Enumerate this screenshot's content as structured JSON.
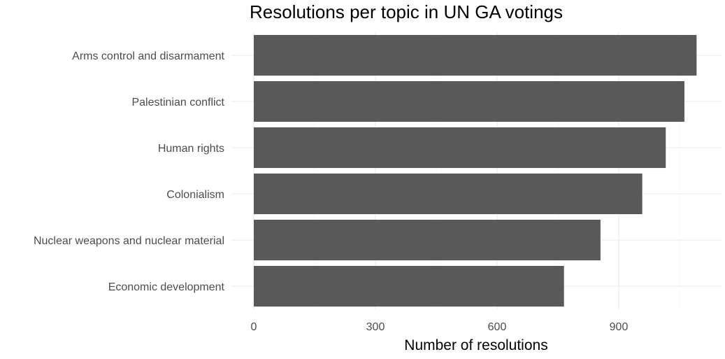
{
  "chart_data": {
    "type": "bar",
    "orientation": "horizontal",
    "title": "Resolutions per topic in UN GA votings",
    "xlabel": "Number of resolutions",
    "ylabel": "",
    "categories": [
      "Arms control and disarmament",
      "Palestinian conflict",
      "Human rights",
      "Colonialism",
      "Nuclear weapons and nuclear material",
      "Economic development"
    ],
    "values": [
      1092,
      1062,
      1016,
      958,
      855,
      765
    ],
    "x_ticks": [
      0,
      300,
      600,
      900
    ],
    "xlim": [
      0,
      1150
    ],
    "grid": true,
    "bar_color": "#595959"
  }
}
